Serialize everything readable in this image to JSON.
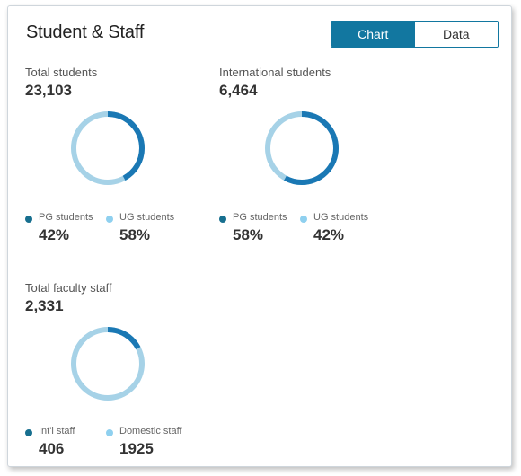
{
  "panel": {
    "title": "Student & Staff",
    "toggle": {
      "chart_label": "Chart",
      "data_label": "Data",
      "selected": "Chart"
    }
  },
  "colors": {
    "primary": "#1a78b4",
    "secondary": "#a6d2e7",
    "dot_primary": "#176f8f",
    "dot_secondary": "#8fd0ef",
    "accent": "#1277a0"
  },
  "groups": [
    {
      "label": "Total students",
      "value": "23,103",
      "legend": [
        {
          "name": "PG students",
          "pct_text": "42%",
          "share": 0.42
        },
        {
          "name": "UG students",
          "pct_text": "58%",
          "share": 0.58
        }
      ]
    },
    {
      "label": "International students",
      "value": "6,464",
      "legend": [
        {
          "name": "PG students",
          "pct_text": "58%",
          "share": 0.58
        },
        {
          "name": "UG students",
          "pct_text": "42%",
          "share": 0.42
        }
      ]
    },
    {
      "label": "Total faculty staff",
      "value": "2,331",
      "legend": [
        {
          "name": "Int'l staff",
          "pct_text": "406",
          "share": 0.174
        },
        {
          "name": "Domestic staff",
          "pct_text": "1925",
          "share": 0.826
        }
      ]
    }
  ]
}
